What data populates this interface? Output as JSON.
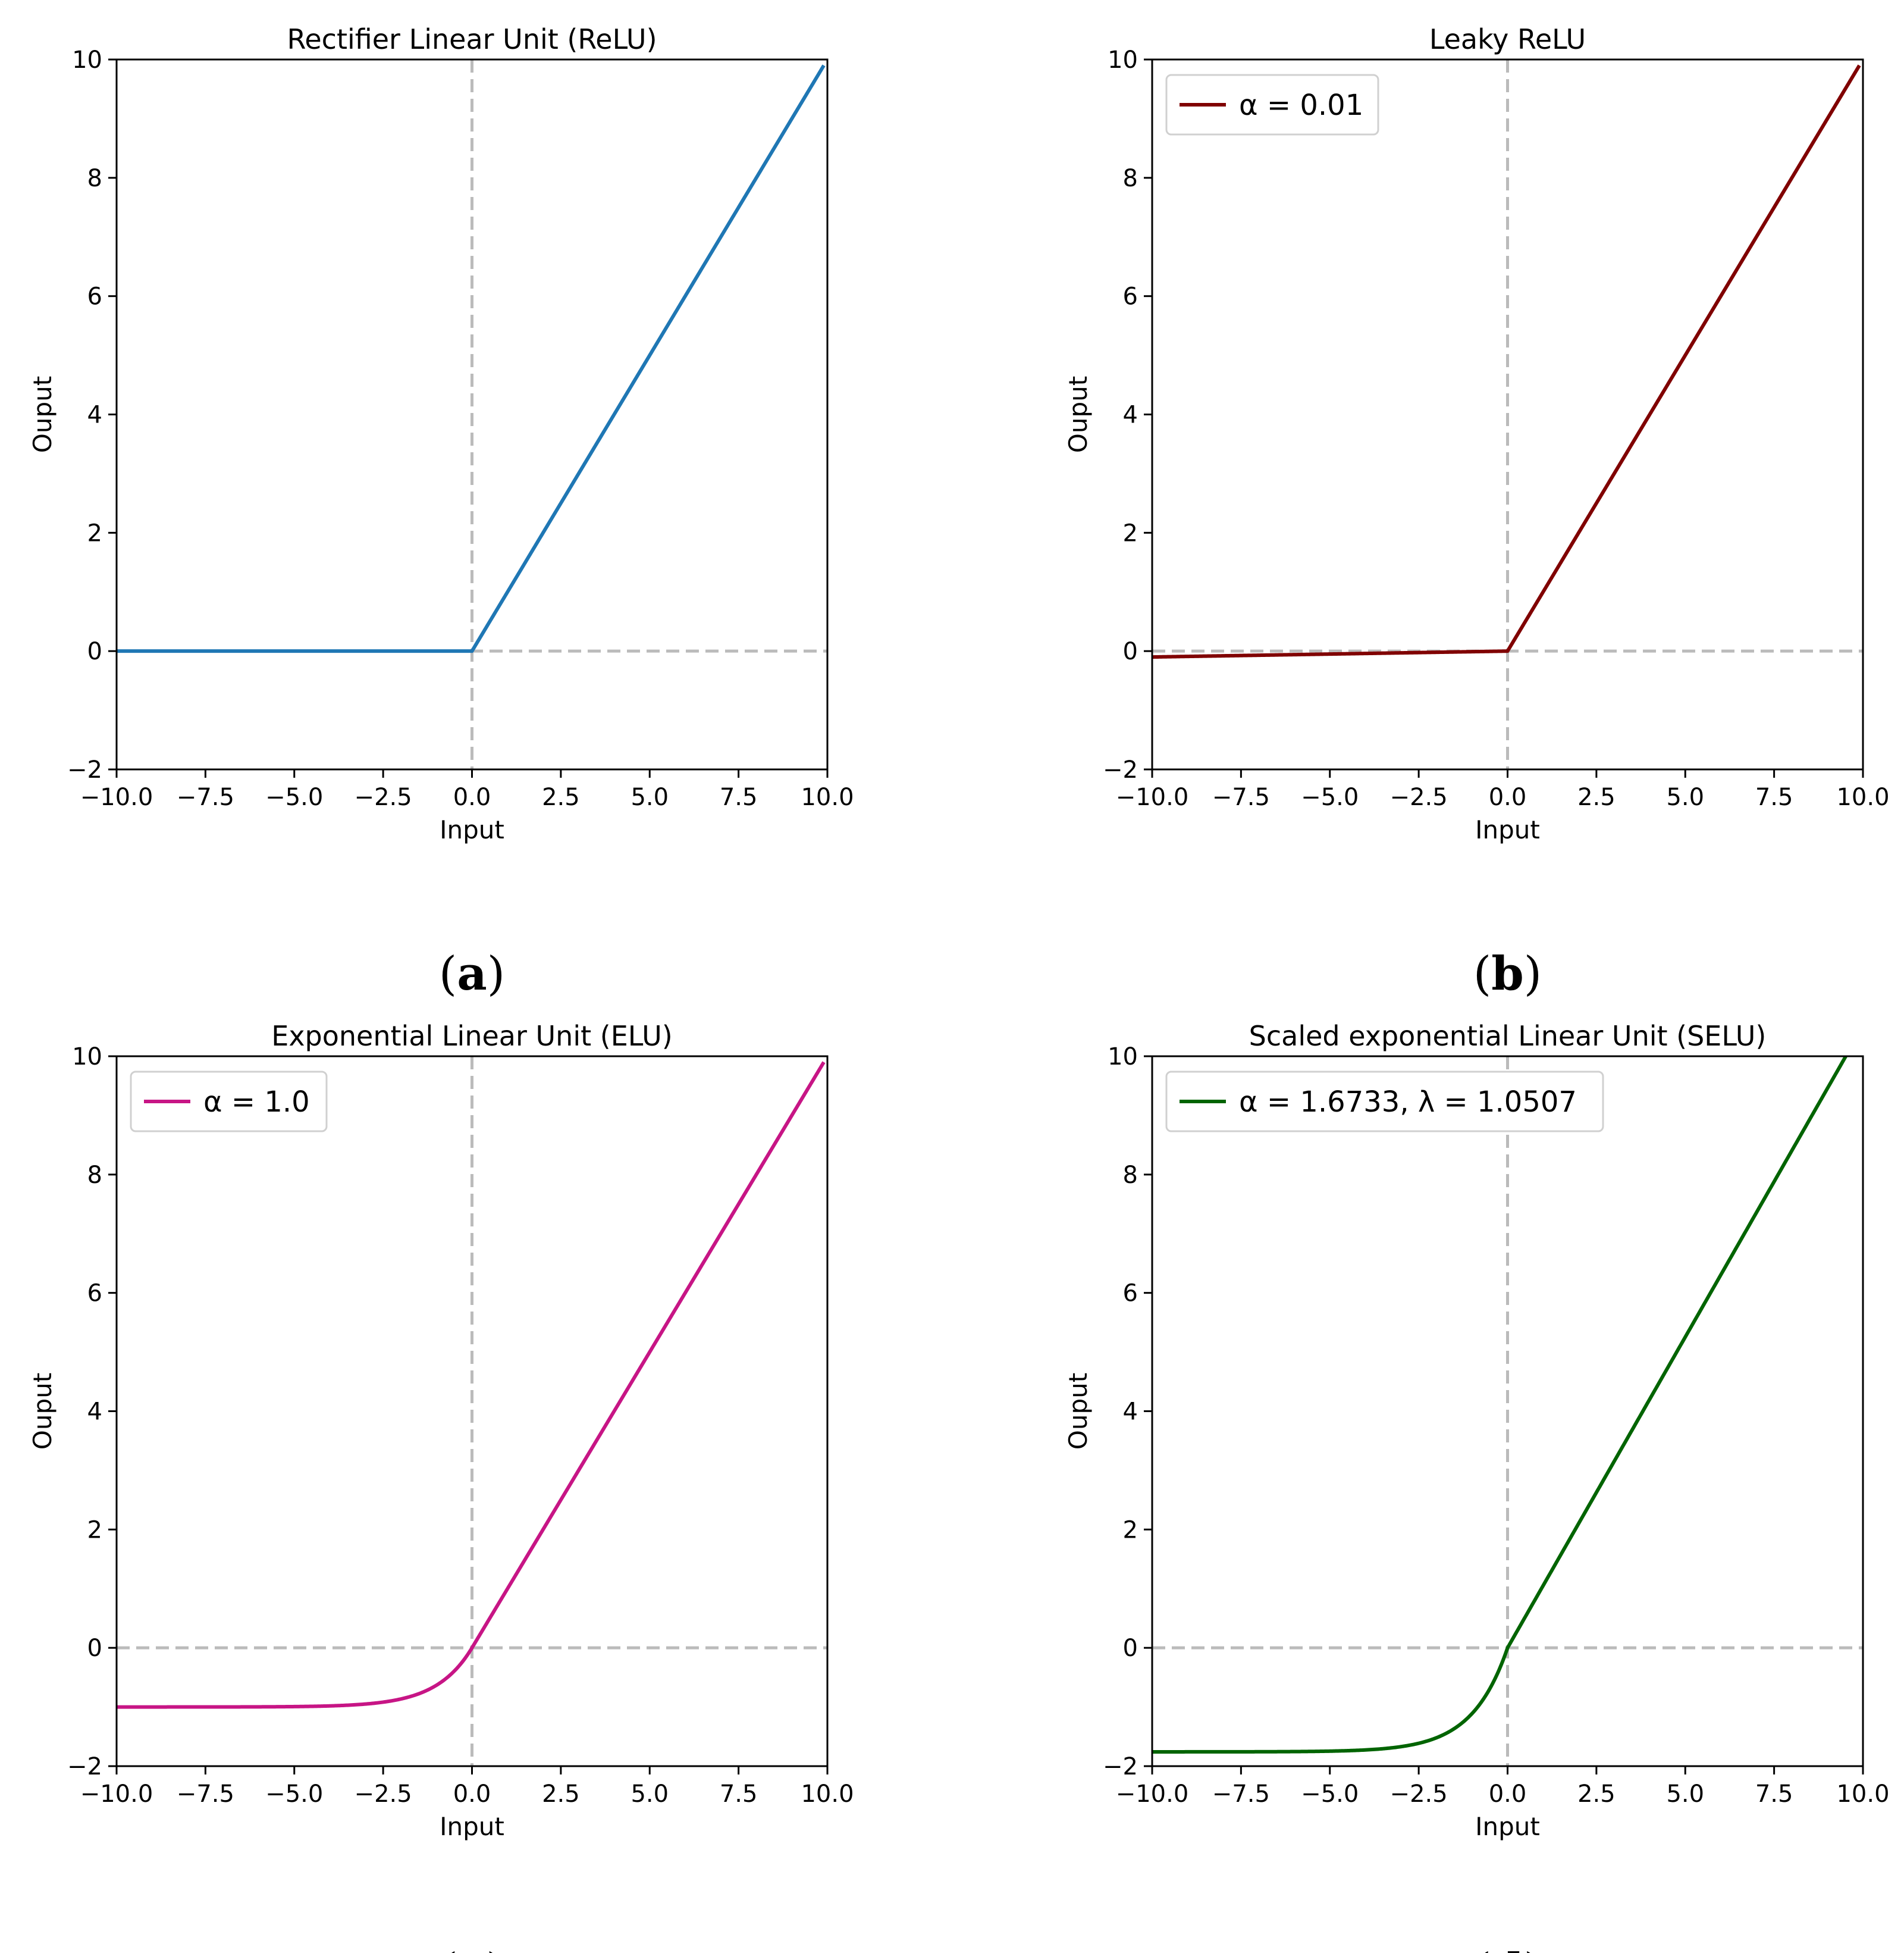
{
  "chart_data": [
    {
      "type": "line",
      "id": "relu",
      "title": "Rectifier Linear Unit (ReLU)",
      "xlabel": "Input",
      "ylabel": "Ouput",
      "xlim": [
        -10,
        10
      ],
      "ylim": [
        -2,
        10
      ],
      "xticks": [
        "−10.0",
        "−7.5",
        "−5.0",
        "−2.5",
        "0.0",
        "2.5",
        "5.0",
        "7.5",
        "10.0"
      ],
      "yticks": [
        "−2",
        "0",
        "2",
        "4",
        "6",
        "8",
        "10"
      ],
      "reference_lines": {
        "x": 0,
        "y": 0,
        "style": "dashed",
        "color": "#bbbbbb"
      },
      "series": [
        {
          "name": "",
          "color": "#1f77b4",
          "function": "relu",
          "x": [
            -10,
            -7.5,
            -5,
            -2.5,
            0,
            2.5,
            5,
            7.5,
            9.9
          ],
          "y": [
            0,
            0,
            0,
            0,
            0,
            2.5,
            5,
            7.5,
            9.9
          ]
        }
      ],
      "legend": null,
      "caption_letter": "a"
    },
    {
      "type": "line",
      "id": "leaky-relu",
      "title": "Leaky ReLU",
      "xlabel": "Input",
      "ylabel": "Ouput",
      "xlim": [
        -10,
        10
      ],
      "ylim": [
        -2,
        10
      ],
      "xticks": [
        "−10.0",
        "−7.5",
        "−5.0",
        "−2.5",
        "0.0",
        "2.5",
        "5.0",
        "7.5",
        "10.0"
      ],
      "yticks": [
        "−2",
        "0",
        "2",
        "4",
        "6",
        "8",
        "10"
      ],
      "reference_lines": {
        "x": 0,
        "y": 0,
        "style": "dashed",
        "color": "#bbbbbb"
      },
      "series": [
        {
          "name": "α = 0.01",
          "color": "#800000",
          "function": "leaky",
          "alpha": 0.01,
          "x": [
            -10,
            -5,
            0,
            2.5,
            5,
            7.5,
            9.9
          ],
          "y": [
            -0.1,
            -0.05,
            0,
            2.5,
            5,
            7.5,
            9.9
          ]
        }
      ],
      "legend": {
        "location": "upper-left",
        "entries": [
          "α = 0.01"
        ]
      },
      "caption_letter": "b"
    },
    {
      "type": "line",
      "id": "elu",
      "title": "Exponential Linear Unit (ELU)",
      "xlabel": "Input",
      "ylabel": "Ouput",
      "xlim": [
        -10,
        10
      ],
      "ylim": [
        -2,
        10
      ],
      "xticks": [
        "−10.0",
        "−7.5",
        "−5.0",
        "−2.5",
        "0.0",
        "2.5",
        "5.0",
        "7.5",
        "10.0"
      ],
      "yticks": [
        "−2",
        "0",
        "2",
        "4",
        "6",
        "8",
        "10"
      ],
      "reference_lines": {
        "x": 0,
        "y": 0,
        "style": "dashed",
        "color": "#bbbbbb"
      },
      "series": [
        {
          "name": "α = 1.0",
          "color": "#c71585",
          "function": "elu",
          "alpha": 1.0,
          "x": [
            -10,
            -5,
            -2.5,
            -1,
            0,
            2.5,
            5,
            7.5,
            9.9
          ],
          "y": [
            -1.0,
            -0.99,
            -0.92,
            -0.63,
            0,
            2.5,
            5,
            7.5,
            9.9
          ]
        }
      ],
      "legend": {
        "location": "upper-left",
        "entries": [
          "α = 1.0"
        ]
      },
      "caption_letter": "c"
    },
    {
      "type": "line",
      "id": "selu",
      "title": "Scaled exponential Linear Unit (SELU)",
      "xlabel": "Input",
      "ylabel": "Ouput",
      "xlim": [
        -10,
        10
      ],
      "ylim": [
        -2,
        10
      ],
      "xticks": [
        "−10.0",
        "−7.5",
        "−5.0",
        "−2.5",
        "0.0",
        "2.5",
        "5.0",
        "7.5",
        "10.0"
      ],
      "yticks": [
        "−2",
        "0",
        "2",
        "4",
        "6",
        "8",
        "10"
      ],
      "reference_lines": {
        "x": 0,
        "y": 0,
        "style": "dashed",
        "color": "#bbbbbb"
      },
      "series": [
        {
          "name": "α = 1.6733, λ = 1.0507",
          "color": "#006400",
          "function": "selu",
          "alpha": 1.6733,
          "lambda": 1.0507,
          "x": [
            -10,
            -5,
            -2.5,
            -1,
            0,
            2.5,
            5,
            7.5,
            9.5
          ],
          "y": [
            -1.76,
            -1.75,
            -1.62,
            -1.11,
            0,
            2.63,
            5.25,
            7.88,
            9.98
          ]
        }
      ],
      "legend": {
        "location": "upper-left",
        "entries": [
          "α = 1.6733, λ = 1.0507"
        ]
      },
      "caption_letter": "d"
    }
  ],
  "captions": {
    "open": "(",
    "close": ")"
  }
}
